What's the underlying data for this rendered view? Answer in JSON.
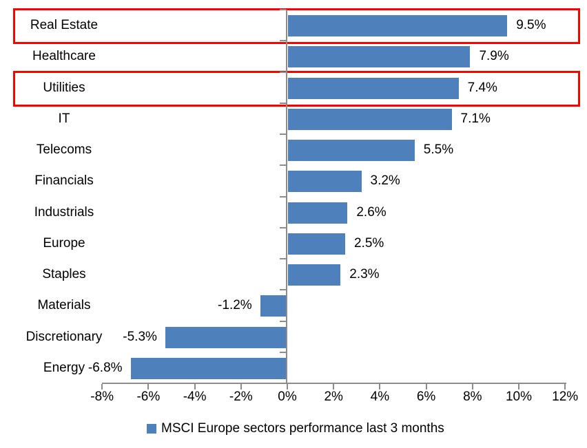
{
  "chart_data": {
    "type": "bar",
    "orientation": "horizontal",
    "title": "",
    "categories": [
      "Real Estate",
      "Healthcare",
      "Utilities",
      "IT",
      "Telecoms",
      "Financials",
      "Industrials",
      "Europe",
      "Staples",
      "Materials",
      "Discretionary",
      "Energy"
    ],
    "values": [
      9.5,
      7.9,
      7.4,
      7.1,
      5.5,
      3.2,
      2.6,
      2.5,
      2.3,
      -1.2,
      -5.3,
      -6.8
    ],
    "value_labels": [
      "9.5%",
      "7.9%",
      "7.4%",
      "7.1%",
      "5.5%",
      "3.2%",
      "2.6%",
      "2.5%",
      "2.3%",
      "-1.2%",
      "-5.3%",
      "-6.8%"
    ],
    "x_tick_labels": [
      "-8%",
      "-6%",
      "-4%",
      "-2%",
      "0%",
      "2%",
      "4%",
      "6%",
      "8%",
      "10%",
      "12%"
    ],
    "x_tick_values": [
      -8,
      -6,
      -4,
      -2,
      0,
      2,
      4,
      6,
      8,
      10,
      12
    ],
    "xlim": [
      -8,
      12
    ],
    "grid": false,
    "legend": {
      "label": "MSCI Europe sectors performance last 3 months",
      "position": "bottom-center"
    },
    "highlighted_categories": [
      "Real Estate",
      "Utilities"
    ],
    "colors": {
      "bar": "#4E81BC",
      "highlight_box": "#FF0000",
      "axis": "#8C8C8C",
      "text": "#000000",
      "background": "#FFFFFF"
    }
  }
}
